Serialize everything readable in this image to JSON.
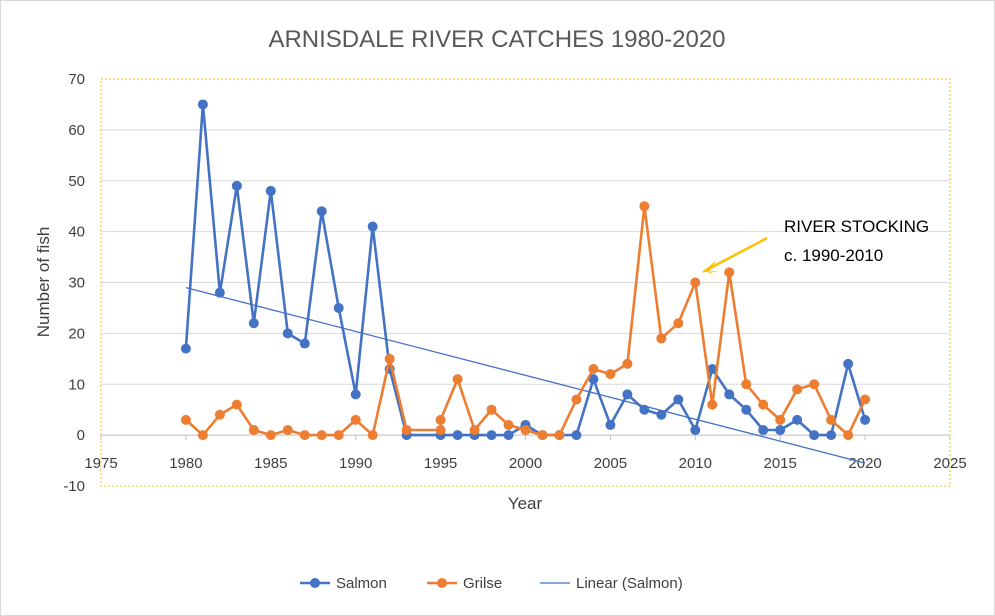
{
  "chart_data": {
    "type": "scatter",
    "title": "ARNISDALE RIVER CATCHES 1980-2020",
    "xlabel": "Year",
    "ylabel": "Number of fish",
    "xlim": [
      1975,
      2025
    ],
    "ylim": [
      -10,
      70
    ],
    "xticks": [
      1975,
      1980,
      1985,
      1990,
      1995,
      2000,
      2005,
      2010,
      2015,
      2020,
      2025
    ],
    "yticks": [
      -10,
      0,
      10,
      20,
      30,
      40,
      50,
      60,
      70
    ],
    "grid": "horizontal",
    "legend_position": "bottom",
    "series": [
      {
        "name": "Salmon",
        "color": "#4472c4",
        "points": [
          [
            1980,
            17
          ],
          [
            1981,
            65
          ],
          [
            1982,
            28
          ],
          [
            1983,
            49
          ],
          [
            1984,
            22
          ],
          [
            1985,
            48
          ],
          [
            1986,
            20
          ],
          [
            1987,
            18
          ],
          [
            1988,
            44
          ],
          [
            1989,
            25
          ],
          [
            1990,
            8
          ],
          [
            1991,
            41
          ],
          [
            1992,
            13
          ],
          [
            1993,
            0
          ],
          [
            1995,
            0
          ],
          [
            1996,
            0
          ],
          [
            1997,
            0
          ],
          [
            1998,
            0
          ],
          [
            1999,
            0
          ],
          [
            2000,
            2
          ],
          [
            2001,
            0
          ],
          [
            2002,
            0
          ],
          [
            2003,
            0
          ],
          [
            2004,
            11
          ],
          [
            2005,
            2
          ],
          [
            2006,
            8
          ],
          [
            2007,
            5
          ],
          [
            2008,
            4
          ],
          [
            2009,
            7
          ],
          [
            2010,
            1
          ],
          [
            2011,
            13
          ],
          [
            2012,
            8
          ],
          [
            2013,
            5
          ],
          [
            2014,
            1
          ],
          [
            2015,
            1
          ],
          [
            2016,
            3
          ],
          [
            2017,
            0
          ],
          [
            2018,
            0
          ],
          [
            2019,
            14
          ],
          [
            2020,
            3
          ]
        ]
      },
      {
        "name": "Grilse",
        "color": "#ed7d31",
        "points": [
          [
            1980,
            3
          ],
          [
            1981,
            0
          ],
          [
            1982,
            4
          ],
          [
            1983,
            6
          ],
          [
            1984,
            1
          ],
          [
            1985,
            0
          ],
          [
            1986,
            1
          ],
          [
            1987,
            0
          ],
          [
            1988,
            0
          ],
          [
            1989,
            0
          ],
          [
            1990,
            3
          ],
          [
            1991,
            0
          ],
          [
            1992,
            15
          ],
          [
            1993,
            1
          ],
          [
            1995,
            1
          ],
          [
            1995,
            3
          ],
          [
            1996,
            11
          ],
          [
            1997,
            1
          ],
          [
            1998,
            5
          ],
          [
            1999,
            2
          ],
          [
            2000,
            1
          ],
          [
            2001,
            0
          ],
          [
            2002,
            0
          ],
          [
            2003,
            7
          ],
          [
            2004,
            13
          ],
          [
            2005,
            12
          ],
          [
            2006,
            14
          ],
          [
            2007,
            45
          ],
          [
            2008,
            19
          ],
          [
            2009,
            22
          ],
          [
            2010,
            30
          ],
          [
            2011,
            6
          ],
          [
            2012,
            32
          ],
          [
            2013,
            10
          ],
          [
            2014,
            6
          ],
          [
            2015,
            3
          ],
          [
            2016,
            9
          ],
          [
            2017,
            10
          ],
          [
            2018,
            3
          ],
          [
            2019,
            0
          ],
          [
            2020,
            7
          ]
        ]
      },
      {
        "name": "Linear (Salmon)",
        "color": "#4472c4",
        "kind": "trendline",
        "points": [
          [
            1980,
            29
          ],
          [
            2020,
            -5.5
          ]
        ]
      }
    ],
    "annotation": {
      "lines": [
        "RIVER STOCKING",
        "c. 1990-2010"
      ],
      "arrow_color": "#ffc000",
      "arrow_target": [
        2010,
        30
      ]
    }
  }
}
